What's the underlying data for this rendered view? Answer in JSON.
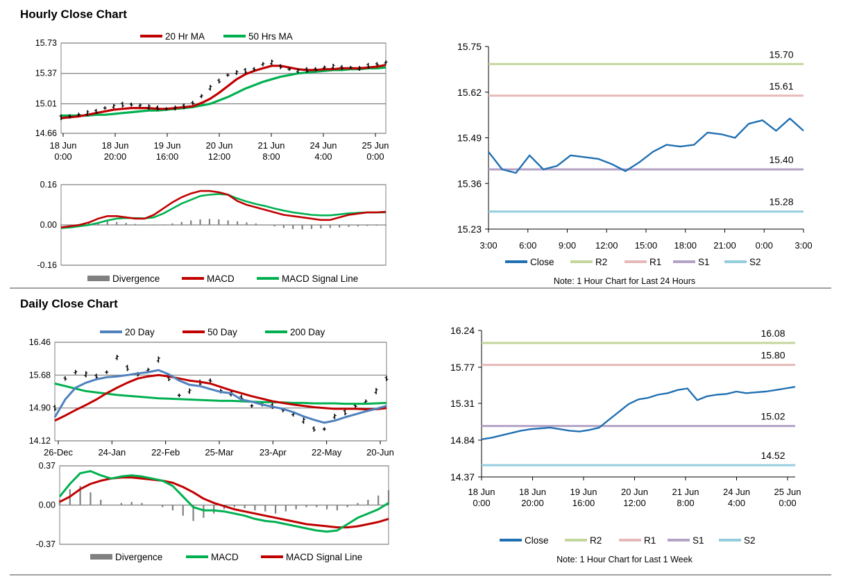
{
  "sections": {
    "hourly": {
      "title": "Hourly Close Chart"
    },
    "daily": {
      "title": "Daily Close Chart"
    }
  },
  "colors": {
    "ma_red": "#c00000",
    "ma_green": "#00b050",
    "ma_blue": "#4f81bd",
    "close_blue": "#1f6fb2",
    "r2": "#c3d69b",
    "r1": "#e6b9b8",
    "s1": "#b3a2c7",
    "s2": "#93cddd",
    "divergence": "#808080",
    "grid": "#7f7f7f",
    "separator": "#808080"
  },
  "chart_data": [
    {
      "id": "hourly_price",
      "type": "line",
      "title": "",
      "legend": [
        "20 Hr MA",
        "50 Hrs MA"
      ],
      "ylim": [
        14.66,
        15.73
      ],
      "yticks": [
        "15.73",
        "15.37",
        "15.01",
        "14.66"
      ],
      "xticks": [
        [
          "18 Jun",
          "0:00"
        ],
        [
          "18 Jun",
          "20:00"
        ],
        [
          "19 Jun",
          "16:00"
        ],
        [
          "20 Jun",
          "12:00"
        ],
        [
          "21 Jun",
          "8:00"
        ],
        [
          "24 Jun",
          "4:00"
        ],
        [
          "25 Jun",
          "0:00"
        ]
      ],
      "series": [
        {
          "name": "Close (OHLC)",
          "values": [
            14.85,
            14.86,
            14.88,
            14.9,
            14.92,
            14.96,
            14.98,
            15.0,
            15.0,
            14.99,
            14.97,
            14.96,
            14.95,
            14.96,
            14.98,
            15.02,
            15.1,
            15.2,
            15.28,
            15.35,
            15.38,
            15.4,
            15.42,
            15.48,
            15.5,
            15.45,
            15.42,
            15.4,
            15.41,
            15.42,
            15.44,
            15.45,
            15.44,
            15.44,
            15.43,
            15.46,
            15.48,
            15.5
          ]
        },
        {
          "name": "20 Hr MA",
          "values": [
            14.84,
            14.85,
            14.86,
            14.88,
            14.9,
            14.92,
            14.94,
            14.95,
            14.96,
            14.96,
            14.96,
            14.95,
            14.95,
            14.96,
            14.97,
            14.98,
            15.02,
            15.07,
            15.14,
            15.22,
            15.3,
            15.36,
            15.4,
            15.43,
            15.46,
            15.46,
            15.44,
            15.42,
            15.41,
            15.41,
            15.42,
            15.42,
            15.43,
            15.43,
            15.43,
            15.44,
            15.45,
            15.47
          ]
        },
        {
          "name": "50 Hrs MA",
          "values": [
            14.87,
            14.87,
            14.87,
            14.87,
            14.88,
            14.88,
            14.89,
            14.9,
            14.91,
            14.92,
            14.93,
            14.93,
            14.94,
            14.95,
            14.96,
            14.97,
            14.99,
            15.01,
            15.05,
            15.09,
            15.14,
            15.19,
            15.23,
            15.27,
            15.3,
            15.33,
            15.35,
            15.37,
            15.38,
            15.39,
            15.4,
            15.41,
            15.41,
            15.42,
            15.42,
            15.43,
            15.43,
            15.44
          ]
        }
      ]
    },
    {
      "id": "hourly_macd",
      "type": "line",
      "legend": [
        "Divergence",
        "MACD",
        "MACD Signal Line"
      ],
      "ylim": [
        -0.16,
        0.16
      ],
      "yticks": [
        "0.16",
        "0.00",
        "-0.16"
      ],
      "series": [
        {
          "name": "Divergence",
          "values": [
            -0.003,
            0.0,
            0.004,
            0.008,
            0.012,
            0.015,
            0.012,
            0.008,
            0.004,
            0.0,
            -0.002,
            0.002,
            0.006,
            0.012,
            0.018,
            0.022,
            0.024,
            0.022,
            0.018,
            0.014,
            0.01,
            0.006,
            0.0,
            -0.006,
            -0.012,
            -0.016,
            -0.018,
            -0.016,
            -0.014,
            -0.012,
            -0.01,
            -0.008,
            -0.006,
            -0.004,
            -0.003,
            -0.002
          ]
        },
        {
          "name": "MACD",
          "values": [
            -0.01,
            -0.005,
            0.0,
            0.01,
            0.025,
            0.035,
            0.035,
            0.03,
            0.025,
            0.025,
            0.04,
            0.065,
            0.09,
            0.11,
            0.125,
            0.135,
            0.135,
            0.13,
            0.12,
            0.095,
            0.08,
            0.07,
            0.06,
            0.05,
            0.04,
            0.035,
            0.03,
            0.025,
            0.02,
            0.02,
            0.03,
            0.04,
            0.045,
            0.05,
            0.05,
            0.052
          ]
        },
        {
          "name": "MACD Signal Line",
          "values": [
            -0.012,
            -0.01,
            -0.005,
            0.0,
            0.008,
            0.018,
            0.025,
            0.028,
            0.027,
            0.026,
            0.03,
            0.045,
            0.065,
            0.085,
            0.1,
            0.115,
            0.12,
            0.123,
            0.12,
            0.105,
            0.093,
            0.083,
            0.075,
            0.065,
            0.057,
            0.05,
            0.045,
            0.04,
            0.038,
            0.038,
            0.042,
            0.046,
            0.048,
            0.05,
            0.05,
            0.05
          ]
        }
      ]
    },
    {
      "id": "hourly_24h",
      "type": "line",
      "ylim": [
        15.23,
        15.75
      ],
      "yticks": [
        "15.75",
        "15.62",
        "15.49",
        "15.36",
        "15.23"
      ],
      "xticks": [
        "3:00",
        "6:00",
        "9:00",
        "12:00",
        "15:00",
        "18:00",
        "21:00",
        "0:00",
        "3:00"
      ],
      "levels": [
        {
          "name": "R2",
          "value": 15.7,
          "label": "15.70"
        },
        {
          "name": "R1",
          "value": 15.61,
          "label": "15.61"
        },
        {
          "name": "S1",
          "value": 15.4,
          "label": "15.40"
        },
        {
          "name": "S2",
          "value": 15.28,
          "label": "15.28"
        }
      ],
      "series": [
        {
          "name": "Close",
          "values": [
            15.45,
            15.4,
            15.39,
            15.44,
            15.4,
            15.41,
            15.44,
            15.435,
            15.43,
            15.415,
            15.395,
            15.42,
            15.45,
            15.47,
            15.465,
            15.47,
            15.505,
            15.5,
            15.49,
            15.53,
            15.54,
            15.51,
            15.545,
            15.51
          ]
        }
      ],
      "legend": [
        "Close",
        "R2",
        "R1",
        "S1",
        "S2"
      ],
      "note": "Note: 1 Hour Chart for Last 24 Hours"
    },
    {
      "id": "daily_price",
      "type": "line",
      "legend": [
        "20 Day",
        "50 Day",
        "200 Day"
      ],
      "ylim": [
        14.12,
        16.46
      ],
      "yticks": [
        "16.46",
        "15.68",
        "14.90",
        "14.12"
      ],
      "xticks": [
        "26-Dec",
        "24-Jan",
        "22-Feb",
        "25-Mar",
        "23-Apr",
        "22-May",
        "20-Jun"
      ],
      "series": [
        {
          "name": "Close (OHLC)",
          "values": [
            14.9,
            15.6,
            15.75,
            15.7,
            15.65,
            15.75,
            16.1,
            15.85,
            15.7,
            15.8,
            16.05,
            15.6,
            15.2,
            15.3,
            15.5,
            15.55,
            15.3,
            15.25,
            15.15,
            14.95,
            15.0,
            14.95,
            14.85,
            14.75,
            14.6,
            14.4,
            14.4,
            14.7,
            14.8,
            14.95,
            15.05,
            15.3,
            15.6
          ]
        },
        {
          "name": "20 Day",
          "values": [
            14.68,
            15.1,
            15.38,
            15.5,
            15.58,
            15.63,
            15.65,
            15.68,
            15.72,
            15.75,
            15.8,
            15.7,
            15.55,
            15.45,
            15.42,
            15.35,
            15.28,
            15.25,
            15.1,
            15.05,
            14.98,
            14.93,
            14.88,
            14.8,
            14.7,
            14.62,
            14.55,
            14.6,
            14.68,
            14.75,
            14.82,
            14.88,
            14.95
          ]
        },
        {
          "name": "50 Day",
          "values": [
            14.6,
            14.72,
            14.85,
            14.97,
            15.1,
            15.25,
            15.38,
            15.5,
            15.6,
            15.65,
            15.68,
            15.65,
            15.6,
            15.55,
            15.52,
            15.48,
            15.4,
            15.32,
            15.25,
            15.18,
            15.12,
            15.06,
            15.02,
            14.98,
            14.95,
            14.92,
            14.9,
            14.88,
            14.88,
            14.88,
            14.87,
            14.87,
            14.9
          ]
        },
        {
          "name": "200 Day",
          "values": [
            15.48,
            15.42,
            15.36,
            15.3,
            15.27,
            15.24,
            15.21,
            15.19,
            15.17,
            15.15,
            15.13,
            15.12,
            15.11,
            15.1,
            15.09,
            15.08,
            15.07,
            15.07,
            15.06,
            15.05,
            15.04,
            15.04,
            15.03,
            15.02,
            15.02,
            15.01,
            15.01,
            15.01,
            15.0,
            15.0,
            15.0,
            15.01,
            15.02
          ]
        }
      ]
    },
    {
      "id": "daily_macd",
      "type": "line",
      "legend": [
        "Divergence",
        "MACD",
        "MACD Signal Line"
      ],
      "ylim": [
        -0.37,
        0.37
      ],
      "yticks": [
        "0.37",
        "0.00",
        "-0.37"
      ],
      "series": [
        {
          "name": "Divergence",
          "values": [
            0.05,
            0.15,
            0.18,
            0.12,
            0.05,
            0.0,
            0.02,
            0.03,
            0.02,
            0.0,
            -0.02,
            -0.05,
            -0.1,
            -0.15,
            -0.12,
            -0.08,
            -0.04,
            -0.02,
            -0.03,
            -0.05,
            -0.06,
            -0.08,
            -0.06,
            -0.04,
            -0.02,
            -0.02,
            -0.04,
            -0.05,
            -0.02,
            0.02,
            0.05,
            0.09,
            0.14
          ]
        },
        {
          "name": "MACD",
          "values": [
            0.08,
            0.2,
            0.3,
            0.32,
            0.28,
            0.25,
            0.27,
            0.28,
            0.27,
            0.25,
            0.23,
            0.18,
            0.08,
            -0.02,
            -0.05,
            -0.05,
            -0.06,
            -0.08,
            -0.1,
            -0.13,
            -0.15,
            -0.16,
            -0.18,
            -0.2,
            -0.22,
            -0.24,
            -0.25,
            -0.24,
            -0.18,
            -0.12,
            -0.08,
            -0.04,
            0.02
          ]
        },
        {
          "name": "MACD Signal Line",
          "values": [
            0.03,
            0.08,
            0.15,
            0.2,
            0.23,
            0.25,
            0.26,
            0.26,
            0.25,
            0.24,
            0.23,
            0.21,
            0.17,
            0.12,
            0.06,
            0.02,
            -0.01,
            -0.04,
            -0.06,
            -0.08,
            -0.1,
            -0.12,
            -0.14,
            -0.16,
            -0.18,
            -0.19,
            -0.2,
            -0.21,
            -0.21,
            -0.2,
            -0.18,
            -0.16,
            -0.13
          ]
        }
      ]
    },
    {
      "id": "daily_week",
      "type": "line",
      "ylim": [
        14.37,
        16.24
      ],
      "yticks": [
        "16.24",
        "15.77",
        "15.31",
        "14.84",
        "14.37"
      ],
      "xticks": [
        [
          "18 Jun",
          "0:00"
        ],
        [
          "18 Jun",
          "20:00"
        ],
        [
          "19 Jun",
          "16:00"
        ],
        [
          "20 Jun",
          "12:00"
        ],
        [
          "21 Jun",
          "8:00"
        ],
        [
          "24 Jun",
          "4:00"
        ],
        [
          "25 Jun",
          "0:00"
        ]
      ],
      "levels": [
        {
          "name": "R2",
          "value": 16.08,
          "label": "16.08"
        },
        {
          "name": "R1",
          "value": 15.8,
          "label": "15.80"
        },
        {
          "name": "S1",
          "value": 15.02,
          "label": "15.02"
        },
        {
          "name": "S2",
          "value": 14.52,
          "label": "14.52"
        }
      ],
      "series": [
        {
          "name": "Close",
          "values": [
            14.85,
            14.87,
            14.9,
            14.93,
            14.96,
            14.98,
            14.99,
            15.0,
            14.98,
            14.96,
            14.95,
            14.97,
            15.0,
            15.1,
            15.2,
            15.3,
            15.36,
            15.38,
            15.42,
            15.44,
            15.48,
            15.5,
            15.35,
            15.4,
            15.42,
            15.43,
            15.46,
            15.44,
            15.45,
            15.46,
            15.48,
            15.5,
            15.52
          ]
        }
      ],
      "legend": [
        "Close",
        "R2",
        "R1",
        "S1",
        "S2"
      ],
      "note": "Note: 1 Hour Chart for Last 1 Week"
    }
  ]
}
